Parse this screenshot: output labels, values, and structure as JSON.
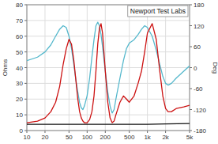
{
  "chart_data": {
    "type": "line",
    "title": "Newport Test Labs",
    "log": "x",
    "grid": true,
    "xlim": [
      10,
      5000
    ],
    "xticks": [
      10,
      20,
      50,
      100,
      200,
      500,
      {
        "value": 1000,
        "label": "1k"
      },
      {
        "value": 2000,
        "label": "2k"
      },
      {
        "value": 5000,
        "label": "5k"
      }
    ],
    "ylim": [
      0,
      80
    ],
    "yticks": [
      0,
      10,
      20,
      30,
      40,
      50,
      60,
      70,
      80
    ],
    "ylabel": "Ohms",
    "y2lim": [
      -180,
      180
    ],
    "y2ticks": [
      -180,
      -120,
      -60,
      0,
      60,
      120,
      180
    ],
    "y2label": "Deg",
    "series": [
      {
        "color": "#111111",
        "x": [
          10,
          50,
          100,
          200,
          500,
          1000,
          2000,
          5000
        ],
        "values": [
          4,
          4,
          4,
          4,
          4,
          4,
          4.2,
          4.5
        ]
      },
      {
        "color": "#55b8cc",
        "axis": "y2",
        "x": [
          10,
          15,
          20,
          25,
          30,
          35,
          40,
          45,
          50,
          55,
          60,
          65,
          70,
          75,
          80,
          85,
          90,
          100,
          110,
          120,
          130,
          140,
          150,
          160,
          170,
          180,
          200,
          220,
          240,
          260,
          280,
          300,
          350,
          400,
          450,
          500,
          600,
          700,
          800,
          900,
          1000,
          1200,
          1400,
          1600,
          1800,
          2000,
          2200,
          2500,
          3000,
          4000,
          5000
        ],
        "values": [
          20,
          30,
          45,
          65,
          90,
          110,
          120,
          115,
          90,
          55,
          10,
          -35,
          -70,
          -100,
          -115,
          -120,
          -110,
          -80,
          -30,
          30,
          80,
          120,
          130,
          120,
          95,
          60,
          -10,
          -70,
          -110,
          -130,
          -120,
          -90,
          -30,
          20,
          55,
          70,
          80,
          95,
          110,
          120,
          115,
          90,
          50,
          10,
          -25,
          -45,
          -50,
          -45,
          -30,
          -10,
          5
        ]
      },
      {
        "color": "#cc1111",
        "x": [
          10,
          15,
          20,
          25,
          30,
          35,
          40,
          45,
          50,
          55,
          60,
          65,
          70,
          75,
          80,
          85,
          90,
          100,
          110,
          120,
          130,
          140,
          150,
          160,
          170,
          180,
          200,
          220,
          240,
          260,
          280,
          300,
          350,
          400,
          450,
          500,
          600,
          700,
          800,
          900,
          1000,
          1200,
          1400,
          1600,
          1800,
          2000,
          2200,
          2500,
          3000,
          4000,
          5000
        ],
        "values": [
          5,
          6,
          8,
          12,
          18,
          28,
          42,
          52,
          58,
          55,
          45,
          32,
          20,
          12,
          8,
          6,
          5,
          5,
          7,
          12,
          22,
          38,
          55,
          65,
          68,
          62,
          38,
          18,
          8,
          5,
          6,
          10,
          18,
          22,
          20,
          18,
          22,
          30,
          38,
          50,
          62,
          68,
          58,
          38,
          22,
          14,
          12,
          12,
          14,
          15,
          16
        ]
      }
    ]
  }
}
